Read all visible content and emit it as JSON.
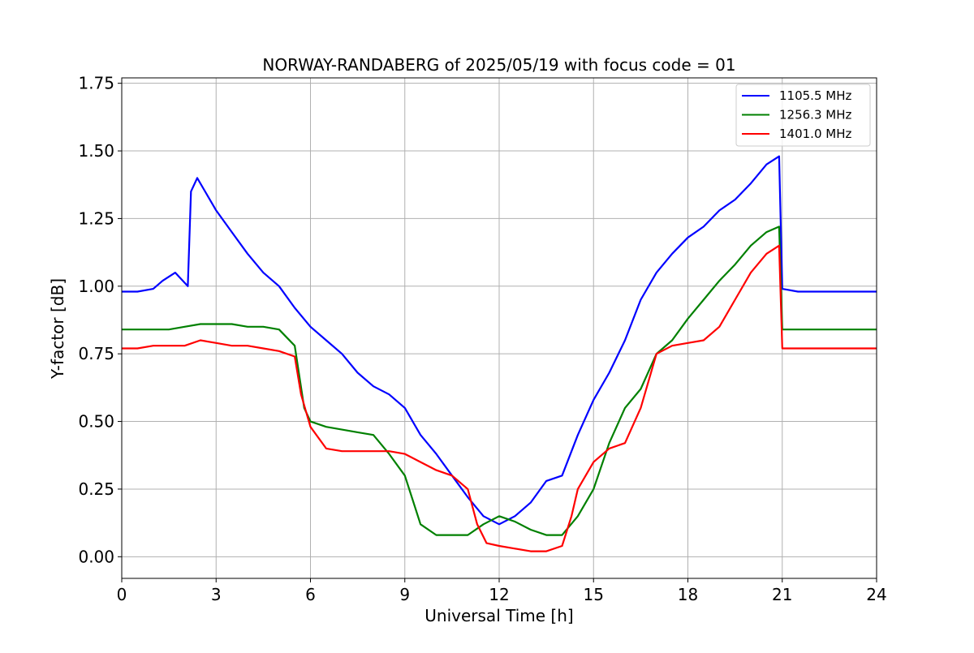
{
  "chart_data": {
    "type": "line",
    "title": "NORWAY-RANDABERG of 2025/05/19 with focus code = 01",
    "xlabel": "Universal Time [h]",
    "ylabel": "Y-factor [dB]",
    "xlim": [
      0,
      24
    ],
    "ylim": [
      -0.08,
      1.77
    ],
    "xticks": [
      0,
      3,
      6,
      9,
      12,
      15,
      18,
      21,
      24
    ],
    "xtick_labels": [
      "0",
      "3",
      "6",
      "9",
      "12",
      "15",
      "18",
      "21",
      "24"
    ],
    "yticks": [
      0,
      0.25,
      0.5,
      0.75,
      1.0,
      1.25,
      1.5,
      1.75
    ],
    "ytick_labels": [
      "0.00",
      "0.25",
      "0.50",
      "0.75",
      "1.00",
      "1.25",
      "1.50",
      "1.75"
    ],
    "grid": true,
    "legend_position": "top-right",
    "series": [
      {
        "name": "1105.5 MHz",
        "color": "#0000ff",
        "x": [
          0,
          0.5,
          1.0,
          1.3,
          1.7,
          2.1,
          2.2,
          2.4,
          3.0,
          3.5,
          4.0,
          4.5,
          5.0,
          5.5,
          6.0,
          6.5,
          7.0,
          7.5,
          8.0,
          8.5,
          9.0,
          9.5,
          10.0,
          10.5,
          11.0,
          11.5,
          12.0,
          12.5,
          13.0,
          13.5,
          14.0,
          14.5,
          15.0,
          15.5,
          16.0,
          16.5,
          17.0,
          17.5,
          18.0,
          18.5,
          19.0,
          19.5,
          20.0,
          20.5,
          20.9,
          21.0,
          21.5,
          22.0,
          23.0,
          24.0
        ],
        "y": [
          0.98,
          0.98,
          0.99,
          1.02,
          1.05,
          1.0,
          1.35,
          1.4,
          1.28,
          1.2,
          1.12,
          1.05,
          1.0,
          0.92,
          0.85,
          0.8,
          0.75,
          0.68,
          0.63,
          0.6,
          0.55,
          0.45,
          0.38,
          0.3,
          0.22,
          0.15,
          0.12,
          0.15,
          0.2,
          0.28,
          0.3,
          0.45,
          0.58,
          0.68,
          0.8,
          0.95,
          1.05,
          1.12,
          1.18,
          1.22,
          1.28,
          1.32,
          1.38,
          1.45,
          1.48,
          0.99,
          0.98,
          0.98,
          0.98,
          0.98
        ]
      },
      {
        "name": "1256.3 MHz",
        "color": "#008000",
        "x": [
          0,
          0.5,
          1.0,
          1.5,
          2.0,
          2.5,
          3.0,
          3.5,
          4.0,
          4.5,
          5.0,
          5.5,
          5.8,
          6.0,
          6.5,
          7.0,
          7.5,
          8.0,
          8.5,
          9.0,
          9.5,
          10.0,
          10.5,
          11.0,
          11.5,
          12.0,
          12.5,
          13.0,
          13.5,
          14.0,
          14.5,
          15.0,
          15.5,
          16.0,
          16.5,
          17.0,
          17.5,
          18.0,
          18.5,
          19.0,
          19.5,
          20.0,
          20.5,
          20.9,
          21.0,
          21.5,
          22.0,
          23.0,
          24.0
        ],
        "y": [
          0.84,
          0.84,
          0.84,
          0.84,
          0.85,
          0.86,
          0.86,
          0.86,
          0.85,
          0.85,
          0.84,
          0.78,
          0.55,
          0.5,
          0.48,
          0.47,
          0.46,
          0.45,
          0.38,
          0.3,
          0.12,
          0.08,
          0.08,
          0.08,
          0.12,
          0.15,
          0.13,
          0.1,
          0.08,
          0.08,
          0.15,
          0.25,
          0.42,
          0.55,
          0.62,
          0.75,
          0.8,
          0.88,
          0.95,
          1.02,
          1.08,
          1.15,
          1.2,
          1.22,
          0.84,
          0.84,
          0.84,
          0.84,
          0.84
        ]
      },
      {
        "name": "1401.0 MHz",
        "color": "#ff0000",
        "x": [
          0,
          0.5,
          1.0,
          1.5,
          2.0,
          2.5,
          3.0,
          3.5,
          4.0,
          4.5,
          5.0,
          5.5,
          5.7,
          6.0,
          6.5,
          7.0,
          7.5,
          8.0,
          8.5,
          9.0,
          9.5,
          10.0,
          10.5,
          11.0,
          11.3,
          11.6,
          12.0,
          12.5,
          13.0,
          13.5,
          14.0,
          14.3,
          14.5,
          15.0,
          15.5,
          16.0,
          16.5,
          17.0,
          17.5,
          18.0,
          18.5,
          19.0,
          19.5,
          20.0,
          20.5,
          20.9,
          21.0,
          21.5,
          22.0,
          23.0,
          24.0
        ],
        "y": [
          0.77,
          0.77,
          0.78,
          0.78,
          0.78,
          0.8,
          0.79,
          0.78,
          0.78,
          0.77,
          0.76,
          0.74,
          0.6,
          0.48,
          0.4,
          0.39,
          0.39,
          0.39,
          0.39,
          0.38,
          0.35,
          0.32,
          0.3,
          0.25,
          0.12,
          0.05,
          0.04,
          0.03,
          0.02,
          0.02,
          0.04,
          0.15,
          0.25,
          0.35,
          0.4,
          0.42,
          0.55,
          0.75,
          0.78,
          0.79,
          0.8,
          0.85,
          0.95,
          1.05,
          1.12,
          1.15,
          0.77,
          0.77,
          0.77,
          0.77,
          0.77
        ]
      }
    ]
  }
}
